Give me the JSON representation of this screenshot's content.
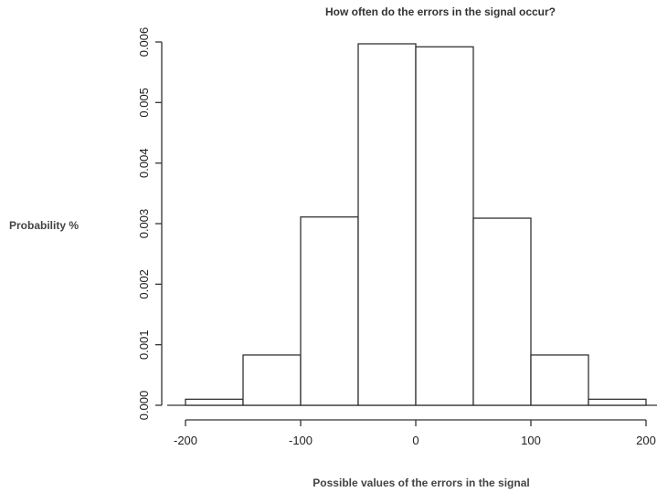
{
  "chart_data": {
    "type": "bar",
    "title": "How often do the errors in the signal occur?",
    "xlabel": "Possible values of the errors in the signal",
    "ylabel": "Probability %",
    "bins": [
      {
        "start": -200,
        "end": -150,
        "value": 0.0001
      },
      {
        "start": -150,
        "end": -100,
        "value": 0.00083
      },
      {
        "start": -100,
        "end": -50,
        "value": 0.00311
      },
      {
        "start": -50,
        "end": 0,
        "value": 0.00597
      },
      {
        "start": 0,
        "end": 50,
        "value": 0.00592
      },
      {
        "start": 50,
        "end": 100,
        "value": 0.00309
      },
      {
        "start": 100,
        "end": 150,
        "value": 0.00083
      },
      {
        "start": 150,
        "end": 200,
        "value": 0.0001
      }
    ],
    "xlim": [
      -200,
      200
    ],
    "ylim": [
      0,
      0.006
    ],
    "xticks": [
      -200,
      -100,
      0,
      100,
      200
    ],
    "xtick_labels": [
      "-200",
      "-100",
      "0",
      "100",
      "200"
    ],
    "yticks": [
      0,
      0.001,
      0.002,
      0.003,
      0.004,
      0.005,
      0.006
    ],
    "ytick_labels": [
      "0.000",
      "0.001",
      "0.002",
      "0.003",
      "0.004",
      "0.005",
      "0.006"
    ],
    "grid": false,
    "legend": "none"
  }
}
